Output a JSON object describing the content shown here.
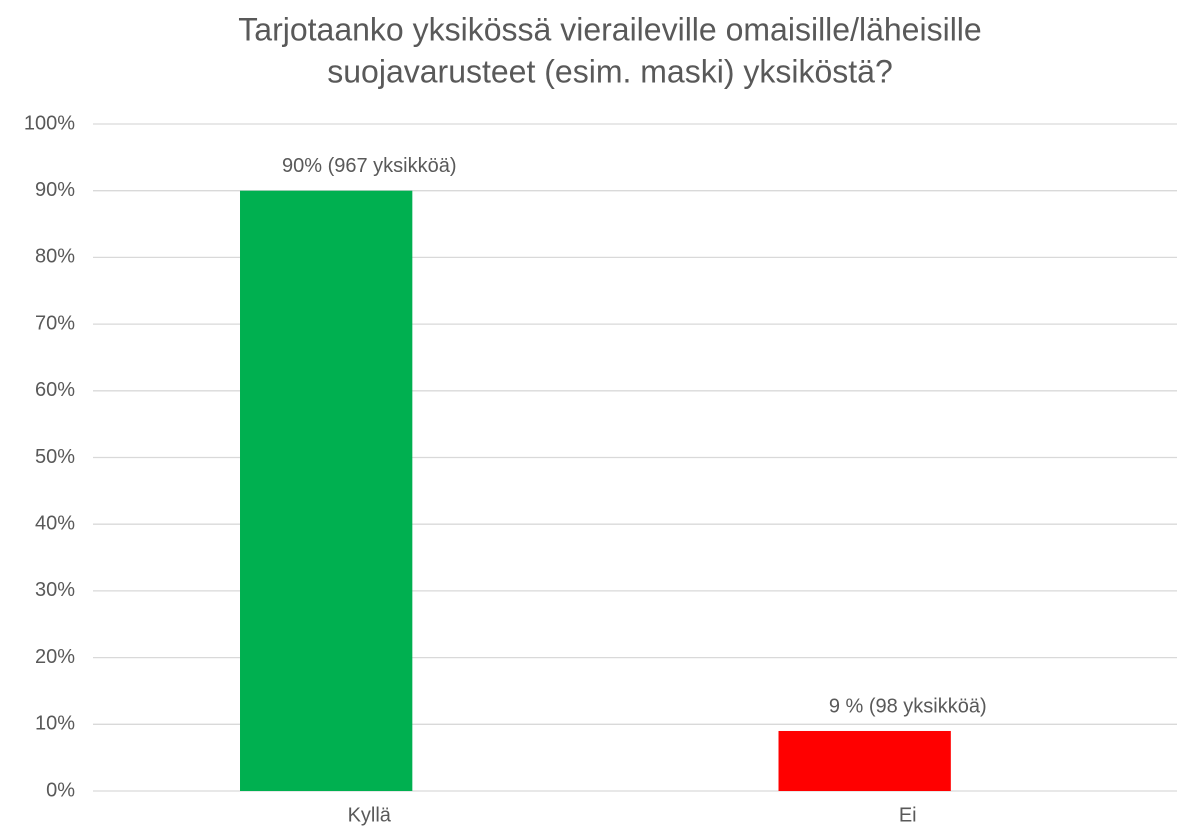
{
  "chart_data": {
    "type": "bar",
    "title": [
      "Tarjotaanko yksikössä vieraileville omaisille/läheisille",
      "suojavarusteet (esim. maski) yksiköstä?"
    ],
    "categories": [
      "Kyllä",
      "Ei"
    ],
    "values": [
      90,
      9
    ],
    "value_labels": [
      "90% (967 yksikköä)",
      "9 % (98 yksikköä)"
    ],
    "colors": [
      "#00b050",
      "#ff0000"
    ],
    "ylim": [
      0,
      100
    ],
    "yticks": [
      {
        "value": 0,
        "label": "0%"
      },
      {
        "value": 10,
        "label": "10%"
      },
      {
        "value": 20,
        "label": "20%"
      },
      {
        "value": 30,
        "label": "30%"
      },
      {
        "value": 40,
        "label": "40%"
      },
      {
        "value": 50,
        "label": "50%"
      },
      {
        "value": 60,
        "label": "60%"
      },
      {
        "value": 70,
        "label": "70%"
      },
      {
        "value": 80,
        "label": "80%"
      },
      {
        "value": 90,
        "label": "90%"
      },
      {
        "value": 100,
        "label": "100%"
      }
    ],
    "grid": true
  }
}
